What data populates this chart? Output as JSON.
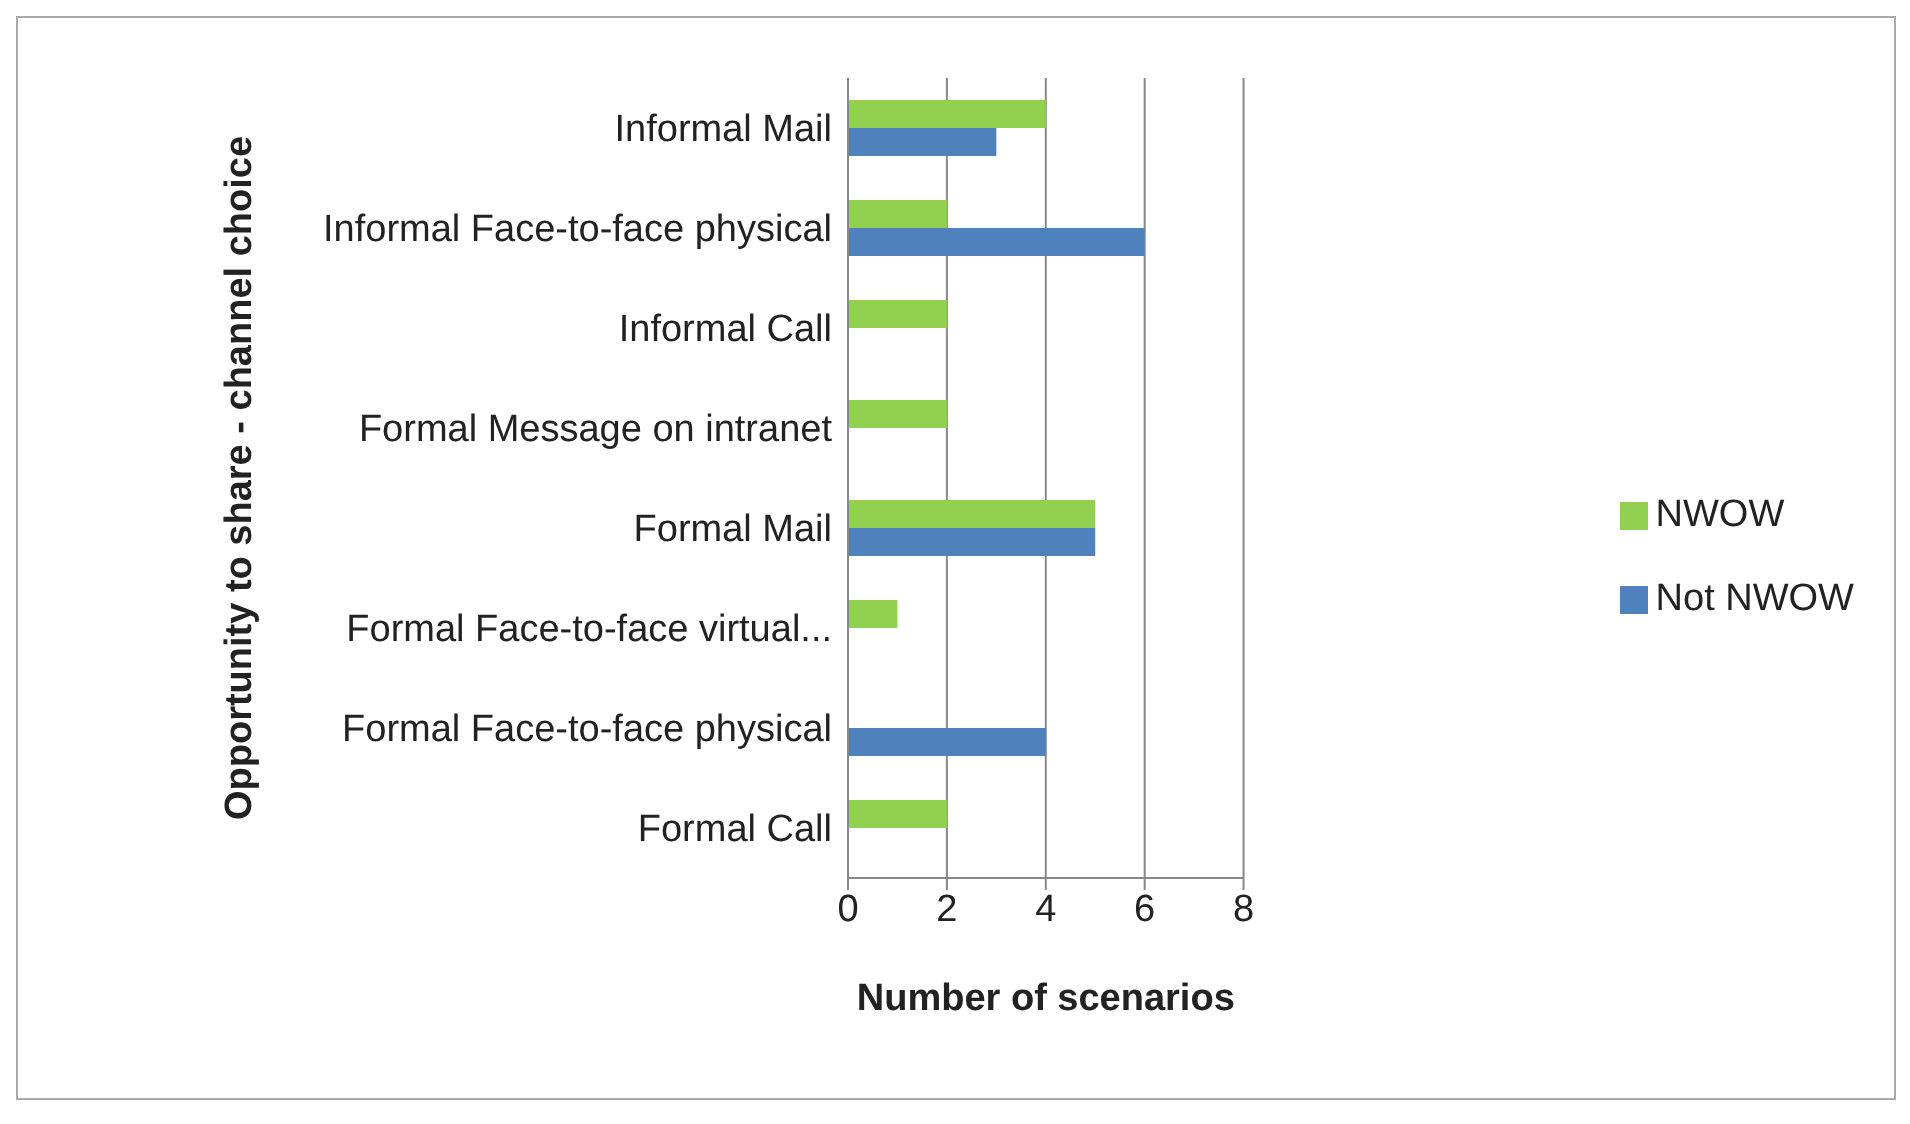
{
  "chart_data": {
    "type": "bar",
    "orientation": "horizontal",
    "xlabel": "Number of scenarios",
    "ylabel": "Opportunity to share - channel choice",
    "categories": [
      "Informal Mail",
      "Informal Face-to-face physical",
      "Informal Call",
      "Formal Message on intranet",
      "Formal Mail",
      "Formal Face-to-face virtual...",
      "Formal Face-to-face physical",
      "Formal Call"
    ],
    "series": [
      {
        "name": "NWOW",
        "color": "#92d050",
        "values": [
          4,
          2,
          2,
          2,
          5,
          1,
          null,
          2
        ]
      },
      {
        "name": "Not NWOW",
        "color": "#4f81bd",
        "values": [
          3,
          6,
          null,
          null,
          5,
          null,
          4,
          null
        ]
      }
    ],
    "xlim": [
      0,
      8
    ],
    "xticks": [
      0,
      2,
      4,
      6,
      8
    ],
    "grid": "x",
    "legend": "right"
  }
}
